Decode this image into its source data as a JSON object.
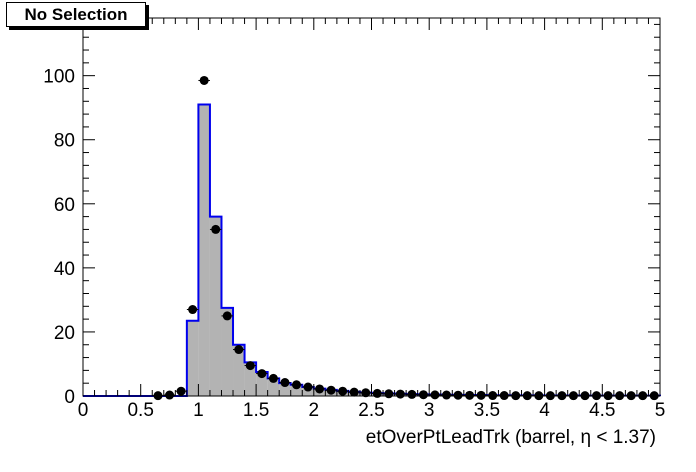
{
  "header": {
    "selection_label": "No Selection"
  },
  "colors": {
    "histogram_fill": "#b3b3b3",
    "histogram_line": "#0000ee",
    "points": "#000000"
  },
  "chart_data": {
    "type": "bar",
    "xlabel": "etOverPtLeadTrk (barrel,   η < 1.37)",
    "xlim": [
      0,
      5
    ],
    "ylim": [
      0,
      118
    ],
    "xticks": [
      "0",
      "0.5",
      "1",
      "1.5",
      "2",
      "2.5",
      "3",
      "3.5",
      "4",
      "4.5",
      "5"
    ],
    "yticks": [
      "0",
      "20",
      "40",
      "60",
      "80",
      "100"
    ],
    "bin_width": 0.1,
    "series": [
      {
        "style": "histogram",
        "x": [
          0.05,
          0.15,
          0.25,
          0.35,
          0.45,
          0.55,
          0.65,
          0.75,
          0.85,
          0.95,
          1.05,
          1.15,
          1.25,
          1.35,
          1.45,
          1.55,
          1.65,
          1.75,
          1.85,
          1.95,
          2.05,
          2.15,
          2.25,
          2.35,
          2.45,
          2.55,
          2.65,
          2.75,
          2.85,
          2.95,
          3.05,
          3.15,
          3.25,
          3.35,
          3.45,
          3.55,
          3.65,
          3.75,
          3.85,
          3.95,
          4.05,
          4.15,
          4.25,
          4.35,
          4.45,
          4.55,
          4.65,
          4.75,
          4.85,
          4.95
        ],
        "values": [
          0,
          0,
          0,
          0,
          0,
          0,
          0,
          0,
          0,
          23.5,
          91,
          56,
          27.5,
          16,
          10.5,
          7.5,
          5.5,
          4,
          3.5,
          2.8,
          2.3,
          1.9,
          1.6,
          1.3,
          1.1,
          0.9,
          0.8,
          0.7,
          0.6,
          0.5,
          0.45,
          0.4,
          0.35,
          0.3,
          0.3,
          0.25,
          0.25,
          0.2,
          0.2,
          0.2,
          0.15,
          0.15,
          0.15,
          0.1,
          0.1,
          0.1,
          0.1,
          0.1,
          0.1,
          0.1
        ]
      },
      {
        "style": "markers",
        "x": [
          0.65,
          0.75,
          0.85,
          0.95,
          1.05,
          1.15,
          1.25,
          1.35,
          1.45,
          1.55,
          1.65,
          1.75,
          1.85,
          1.95,
          2.05,
          2.15,
          2.25,
          2.35,
          2.45,
          2.55,
          2.65,
          2.75,
          2.85,
          2.95,
          3.05,
          3.15,
          3.25,
          3.35,
          3.45,
          3.55,
          3.65,
          3.75,
          3.85,
          3.95,
          4.05,
          4.15,
          4.25,
          4.35,
          4.45,
          4.55,
          4.65,
          4.75,
          4.85,
          4.95
        ],
        "values": [
          0.1,
          0.3,
          1.5,
          27,
          98.5,
          52,
          25,
          14.5,
          9.5,
          7,
          5.5,
          4.2,
          3.5,
          2.8,
          2.2,
          1.8,
          1.5,
          1.2,
          1,
          0.8,
          0.7,
          0.6,
          0.5,
          0.4,
          0.35,
          0.3,
          0.25,
          0.2,
          0.2,
          0.15,
          0.15,
          0.1,
          0.1,
          0.1,
          0.1,
          0.1,
          0.1,
          0.1,
          0.1,
          0.1,
          0.1,
          0.1,
          0.1,
          0.1
        ]
      }
    ]
  }
}
